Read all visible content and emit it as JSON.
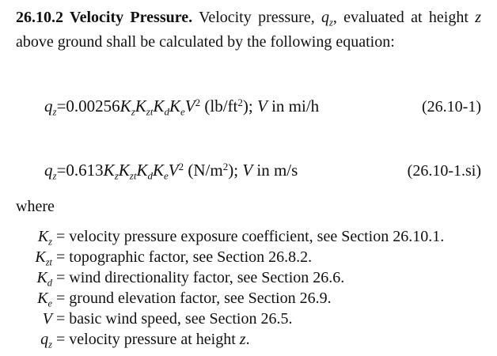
{
  "paragraph": [
    {
      "text": "26.10.2 Velocity Pressure.",
      "s": "b"
    },
    {
      "text": " Velocity pressure, "
    },
    {
      "text": "q",
      "s": "i"
    },
    {
      "text": "z",
      "s": "sub"
    },
    {
      "text": ", evaluated at height "
    },
    {
      "text": "z",
      "s": "i"
    },
    {
      "text": " above ground shall be calculated by the following equation:"
    }
  ],
  "equations": [
    {
      "segments": [
        {
          "text": "q",
          "s": "i"
        },
        {
          "text": "z",
          "s": "sub"
        },
        {
          "text": "=0.00256"
        },
        {
          "text": "K",
          "s": "i"
        },
        {
          "text": "z",
          "s": "sub"
        },
        {
          "text": "K",
          "s": "i"
        },
        {
          "text": "zt",
          "s": "sub"
        },
        {
          "text": "K",
          "s": "i"
        },
        {
          "text": "d",
          "s": "sub"
        },
        {
          "text": "K",
          "s": "i"
        },
        {
          "text": "e",
          "s": "sub"
        },
        {
          "text": "V",
          "s": "i"
        },
        {
          "text": "2",
          "s": "sup"
        },
        {
          "text": " (lb/ft"
        },
        {
          "text": "2",
          "s": "sup"
        },
        {
          "text": "); "
        },
        {
          "text": "V",
          "s": "i"
        },
        {
          "text": " in mi/h"
        }
      ],
      "number": "(26.10-1)"
    },
    {
      "segments": [
        {
          "text": "q",
          "s": "i"
        },
        {
          "text": "z",
          "s": "sub"
        },
        {
          "text": "=0.613"
        },
        {
          "text": "K",
          "s": "i"
        },
        {
          "text": "z",
          "s": "sub"
        },
        {
          "text": "K",
          "s": "i"
        },
        {
          "text": "zt",
          "s": "sub"
        },
        {
          "text": "K",
          "s": "i"
        },
        {
          "text": "d",
          "s": "sub"
        },
        {
          "text": "K",
          "s": "i"
        },
        {
          "text": "e",
          "s": "sub"
        },
        {
          "text": "V",
          "s": "i"
        },
        {
          "text": "2",
          "s": "sup"
        },
        {
          "text": " (N/m"
        },
        {
          "text": "2",
          "s": "sup"
        },
        {
          "text": "); "
        },
        {
          "text": "V",
          "s": "i"
        },
        {
          "text": " in m/s"
        }
      ],
      "number": "(26.10-1.si)"
    }
  ],
  "where": "where",
  "definitions": [
    {
      "symbol": [
        {
          "text": "K",
          "s": "i"
        },
        {
          "text": "z",
          "s": "sub"
        }
      ],
      "text": [
        {
          "text": " = velocity pressure exposure coefficient, see Section 26.10.1."
        }
      ]
    },
    {
      "symbol": [
        {
          "text": "K",
          "s": "i"
        },
        {
          "text": "zt",
          "s": "sub"
        }
      ],
      "text": [
        {
          "text": " = topographic factor, see Section 26.8.2."
        }
      ]
    },
    {
      "symbol": [
        {
          "text": "K",
          "s": "i"
        },
        {
          "text": "d",
          "s": "sub"
        }
      ],
      "text": [
        {
          "text": " = wind directionality factor, see Section 26.6."
        }
      ]
    },
    {
      "symbol": [
        {
          "text": "K",
          "s": "i"
        },
        {
          "text": "e",
          "s": "sub"
        }
      ],
      "text": [
        {
          "text": " = ground elevation factor, see Section 26.9."
        }
      ]
    },
    {
      "symbol": [
        {
          "text": "V",
          "s": "i"
        }
      ],
      "text": [
        {
          "text": " = basic wind speed, see Section 26.5."
        }
      ]
    },
    {
      "symbol": [
        {
          "text": "q",
          "s": "i"
        },
        {
          "text": "z",
          "s": "sub"
        }
      ],
      "text": [
        {
          "text": " = velocity pressure at height "
        },
        {
          "text": "z",
          "s": "i"
        },
        {
          "text": "."
        }
      ]
    }
  ]
}
